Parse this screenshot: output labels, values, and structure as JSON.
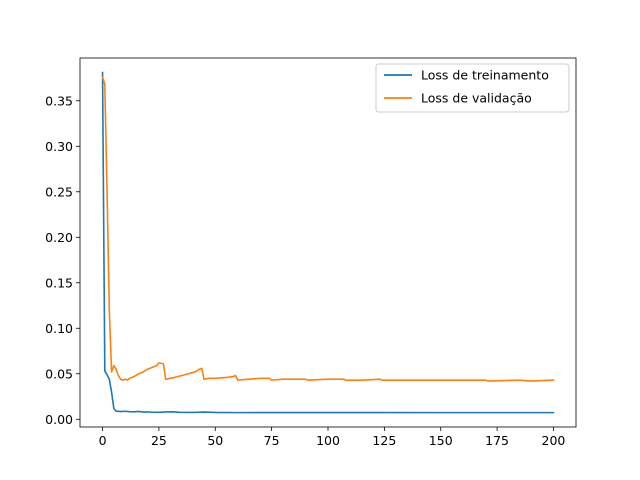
{
  "chart_data": {
    "type": "line",
    "title": "",
    "xlabel": "",
    "ylabel": "",
    "xlim": [
      -10,
      210
    ],
    "ylim": [
      -0.0085,
      0.397
    ],
    "xticks": [
      0,
      25,
      50,
      75,
      100,
      125,
      150,
      175,
      200
    ],
    "xtick_labels": [
      "0",
      "25",
      "50",
      "75",
      "100",
      "125",
      "150",
      "175",
      "200"
    ],
    "yticks": [
      0.0,
      0.05,
      0.1,
      0.15,
      0.2,
      0.25,
      0.3,
      0.35
    ],
    "ytick_labels": [
      "0.00",
      "0.05",
      "0.10",
      "0.15",
      "0.20",
      "0.25",
      "0.30",
      "0.35"
    ],
    "grid": false,
    "legend_position": "upper right",
    "series": [
      {
        "name": "Loss de treinamento",
        "color": "#1f77b4",
        "points": [
          [
            0,
            0.381
          ],
          [
            1,
            0.053
          ],
          [
            2,
            0.049
          ],
          [
            3,
            0.044
          ],
          [
            4,
            0.03
          ],
          [
            5,
            0.012
          ],
          [
            6,
            0.009
          ],
          [
            8,
            0.0085
          ],
          [
            10,
            0.0088
          ],
          [
            12,
            0.0083
          ],
          [
            14,
            0.0082
          ],
          [
            16,
            0.0086
          ],
          [
            18,
            0.0079
          ],
          [
            20,
            0.0081
          ],
          [
            22,
            0.0077
          ],
          [
            25,
            0.0076
          ],
          [
            28,
            0.0081
          ],
          [
            31,
            0.0082
          ],
          [
            34,
            0.0076
          ],
          [
            40,
            0.0075
          ],
          [
            45,
            0.0079
          ],
          [
            50,
            0.0075
          ],
          [
            60,
            0.0073
          ],
          [
            75,
            0.0074
          ],
          [
            90,
            0.0074
          ],
          [
            110,
            0.0074
          ],
          [
            125,
            0.0074
          ],
          [
            150,
            0.0073
          ],
          [
            175,
            0.0073
          ],
          [
            200,
            0.0073
          ]
        ]
      },
      {
        "name": "Loss de validação",
        "color": "#ff7f0e",
        "points": [
          [
            0,
            0.376
          ],
          [
            1,
            0.368
          ],
          [
            2,
            0.25
          ],
          [
            3,
            0.12
          ],
          [
            4,
            0.052
          ],
          [
            5,
            0.059
          ],
          [
            6,
            0.055
          ],
          [
            7,
            0.048
          ],
          [
            8,
            0.044
          ],
          [
            9,
            0.043
          ],
          [
            10,
            0.044
          ],
          [
            11,
            0.043
          ],
          [
            12,
            0.045
          ],
          [
            14,
            0.047
          ],
          [
            16,
            0.05
          ],
          [
            18,
            0.052
          ],
          [
            20,
            0.055
          ],
          [
            22,
            0.057
          ],
          [
            24,
            0.059
          ],
          [
            25,
            0.062
          ],
          [
            27,
            0.061
          ],
          [
            28,
            0.044
          ],
          [
            30,
            0.045
          ],
          [
            32,
            0.046
          ],
          [
            35,
            0.048
          ],
          [
            38,
            0.05
          ],
          [
            41,
            0.052
          ],
          [
            43,
            0.055
          ],
          [
            44,
            0.056
          ],
          [
            45,
            0.044
          ],
          [
            47,
            0.045
          ],
          [
            50,
            0.045
          ],
          [
            55,
            0.046
          ],
          [
            58,
            0.047
          ],
          [
            59,
            0.048
          ],
          [
            60,
            0.043
          ],
          [
            65,
            0.044
          ],
          [
            70,
            0.045
          ],
          [
            74,
            0.045
          ],
          [
            75,
            0.043
          ],
          [
            80,
            0.044
          ],
          [
            85,
            0.044
          ],
          [
            90,
            0.044
          ],
          [
            91,
            0.043
          ],
          [
            100,
            0.044
          ],
          [
            107,
            0.044
          ],
          [
            108,
            0.043
          ],
          [
            115,
            0.043
          ],
          [
            123,
            0.044
          ],
          [
            124,
            0.043
          ],
          [
            135,
            0.043
          ],
          [
            140,
            0.043
          ],
          [
            155,
            0.043
          ],
          [
            170,
            0.043
          ],
          [
            171,
            0.042
          ],
          [
            185,
            0.043
          ],
          [
            190,
            0.042
          ],
          [
            200,
            0.043
          ]
        ]
      }
    ]
  }
}
